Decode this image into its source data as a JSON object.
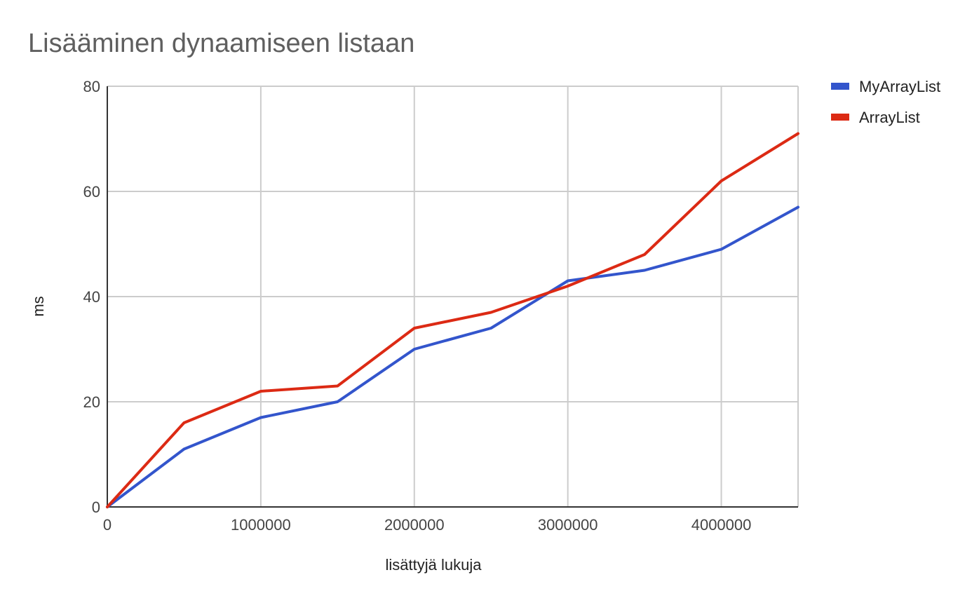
{
  "chart_data": {
    "type": "line",
    "title": "Lisääminen dynaamiseen listaan",
    "xlabel": "lisättyjä lukuja",
    "ylabel": "ms",
    "x": [
      0,
      500000,
      1000000,
      1500000,
      2000000,
      2500000,
      3000000,
      3500000,
      4000000,
      4500000
    ],
    "xlim": [
      0,
      4500000
    ],
    "ylim": [
      0,
      80
    ],
    "x_ticks": [
      "0",
      "1000000",
      "2000000",
      "3000000",
      "4000000"
    ],
    "x_tick_values": [
      0,
      1000000,
      2000000,
      3000000,
      4000000
    ],
    "y_ticks": [
      "0",
      "20",
      "40",
      "60",
      "80"
    ],
    "y_tick_values": [
      0,
      20,
      40,
      60,
      80
    ],
    "grid": true,
    "legend_position": "right",
    "series": [
      {
        "name": "MyArrayList",
        "color": "#3355cc",
        "values": [
          0,
          11,
          17,
          20,
          30,
          34,
          43,
          45,
          49,
          57
        ]
      },
      {
        "name": "ArrayList",
        "color": "#dc2a14",
        "values": [
          0,
          16,
          22,
          23,
          34,
          37,
          42,
          48,
          62,
          71
        ]
      }
    ]
  }
}
